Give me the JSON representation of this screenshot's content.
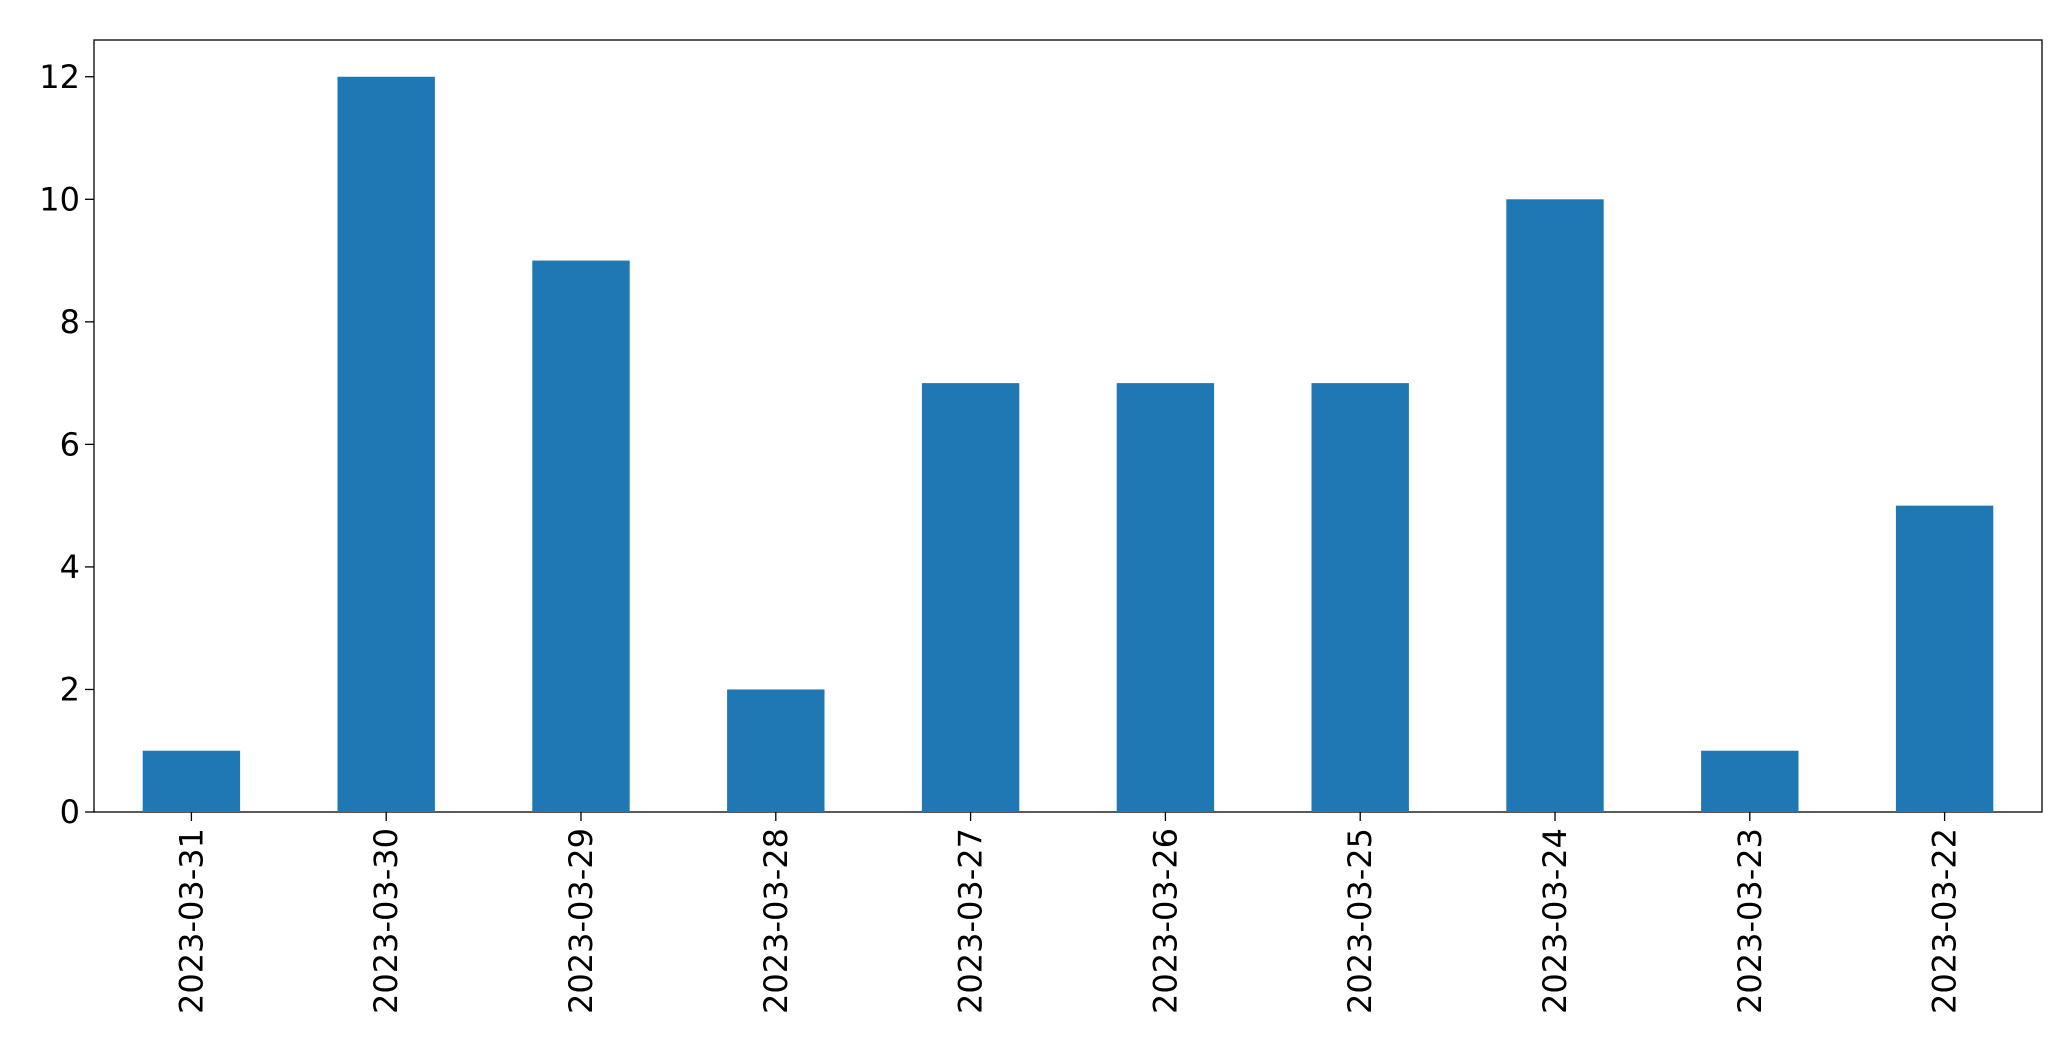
{
  "chart_data": {
    "type": "bar",
    "categories": [
      "2023-03-31",
      "2023-03-30",
      "2023-03-29",
      "2023-03-28",
      "2023-03-27",
      "2023-03-26",
      "2023-03-25",
      "2023-03-24",
      "2023-03-23",
      "2023-03-22"
    ],
    "values": [
      1,
      12,
      9,
      2,
      7,
      7,
      7,
      10,
      1,
      5
    ],
    "color": "#1f77b4",
    "ylim": [
      0,
      12.6
    ],
    "yticks": [
      0,
      2,
      4,
      6,
      8,
      10,
      12
    ],
    "grid": false
  }
}
